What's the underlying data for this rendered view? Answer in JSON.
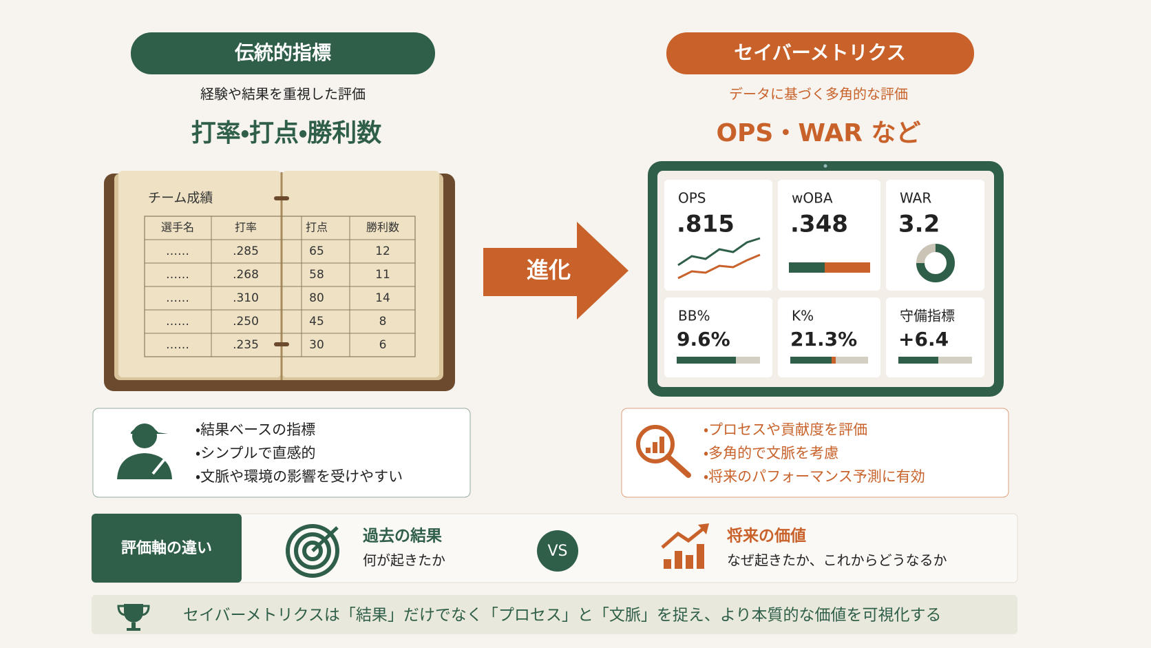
{
  "left": {
    "badge": "伝統的指標",
    "subtitle": "経験や結果を重視した評価",
    "headline": "打率・打点・勝利数",
    "book": {
      "title": "チーム成績",
      "columns": [
        "選手名",
        "打率",
        "打点",
        "勝利数"
      ],
      "rows": [
        [
          "……",
          ".285",
          "65",
          "12"
        ],
        [
          "……",
          ".268",
          "58",
          "11"
        ],
        [
          "……",
          ".310",
          "80",
          "14"
        ],
        [
          "……",
          ".250",
          "45",
          "8"
        ],
        [
          "……",
          ".235",
          "30",
          "6"
        ]
      ]
    },
    "points": [
      "・結果ベースの指標",
      "・シンプルで直感的",
      "・文脈や環境の影響を受けやすい"
    ]
  },
  "arrow": "進化",
  "right": {
    "badge": "セイバーメトリクス",
    "subtitle": "データに基づく多角的な評価",
    "headline": "OPS・WAR など",
    "metrics": [
      {
        "label": "OPS",
        "value": ".815"
      },
      {
        "label": "wOBA",
        "value": ".348"
      },
      {
        "label": "WAR",
        "value": "3.2"
      },
      {
        "label": "BB%",
        "value": "9.6%"
      },
      {
        "label": "K%",
        "value": "21.3%"
      },
      {
        "label": "守備指標",
        "value": "+6.4"
      }
    ],
    "points": [
      "・プロセスや貢献度を評価",
      "・多角的で文脈を考慮",
      "・将来のパフォーマンス予測に有効"
    ]
  },
  "comparison": {
    "label": "評価軸の違い",
    "past": {
      "title": "過去の結果",
      "text": "何が起きたか"
    },
    "vs": "VS",
    "future": {
      "title": "将来の価値",
      "text": "なぜ起きたか、これからどうなるか"
    }
  },
  "footer": "セイバーメトリクスは「結果」だけでなく「プロセス」と「文脈」を捉え、より本質的な価値を可視化する"
}
